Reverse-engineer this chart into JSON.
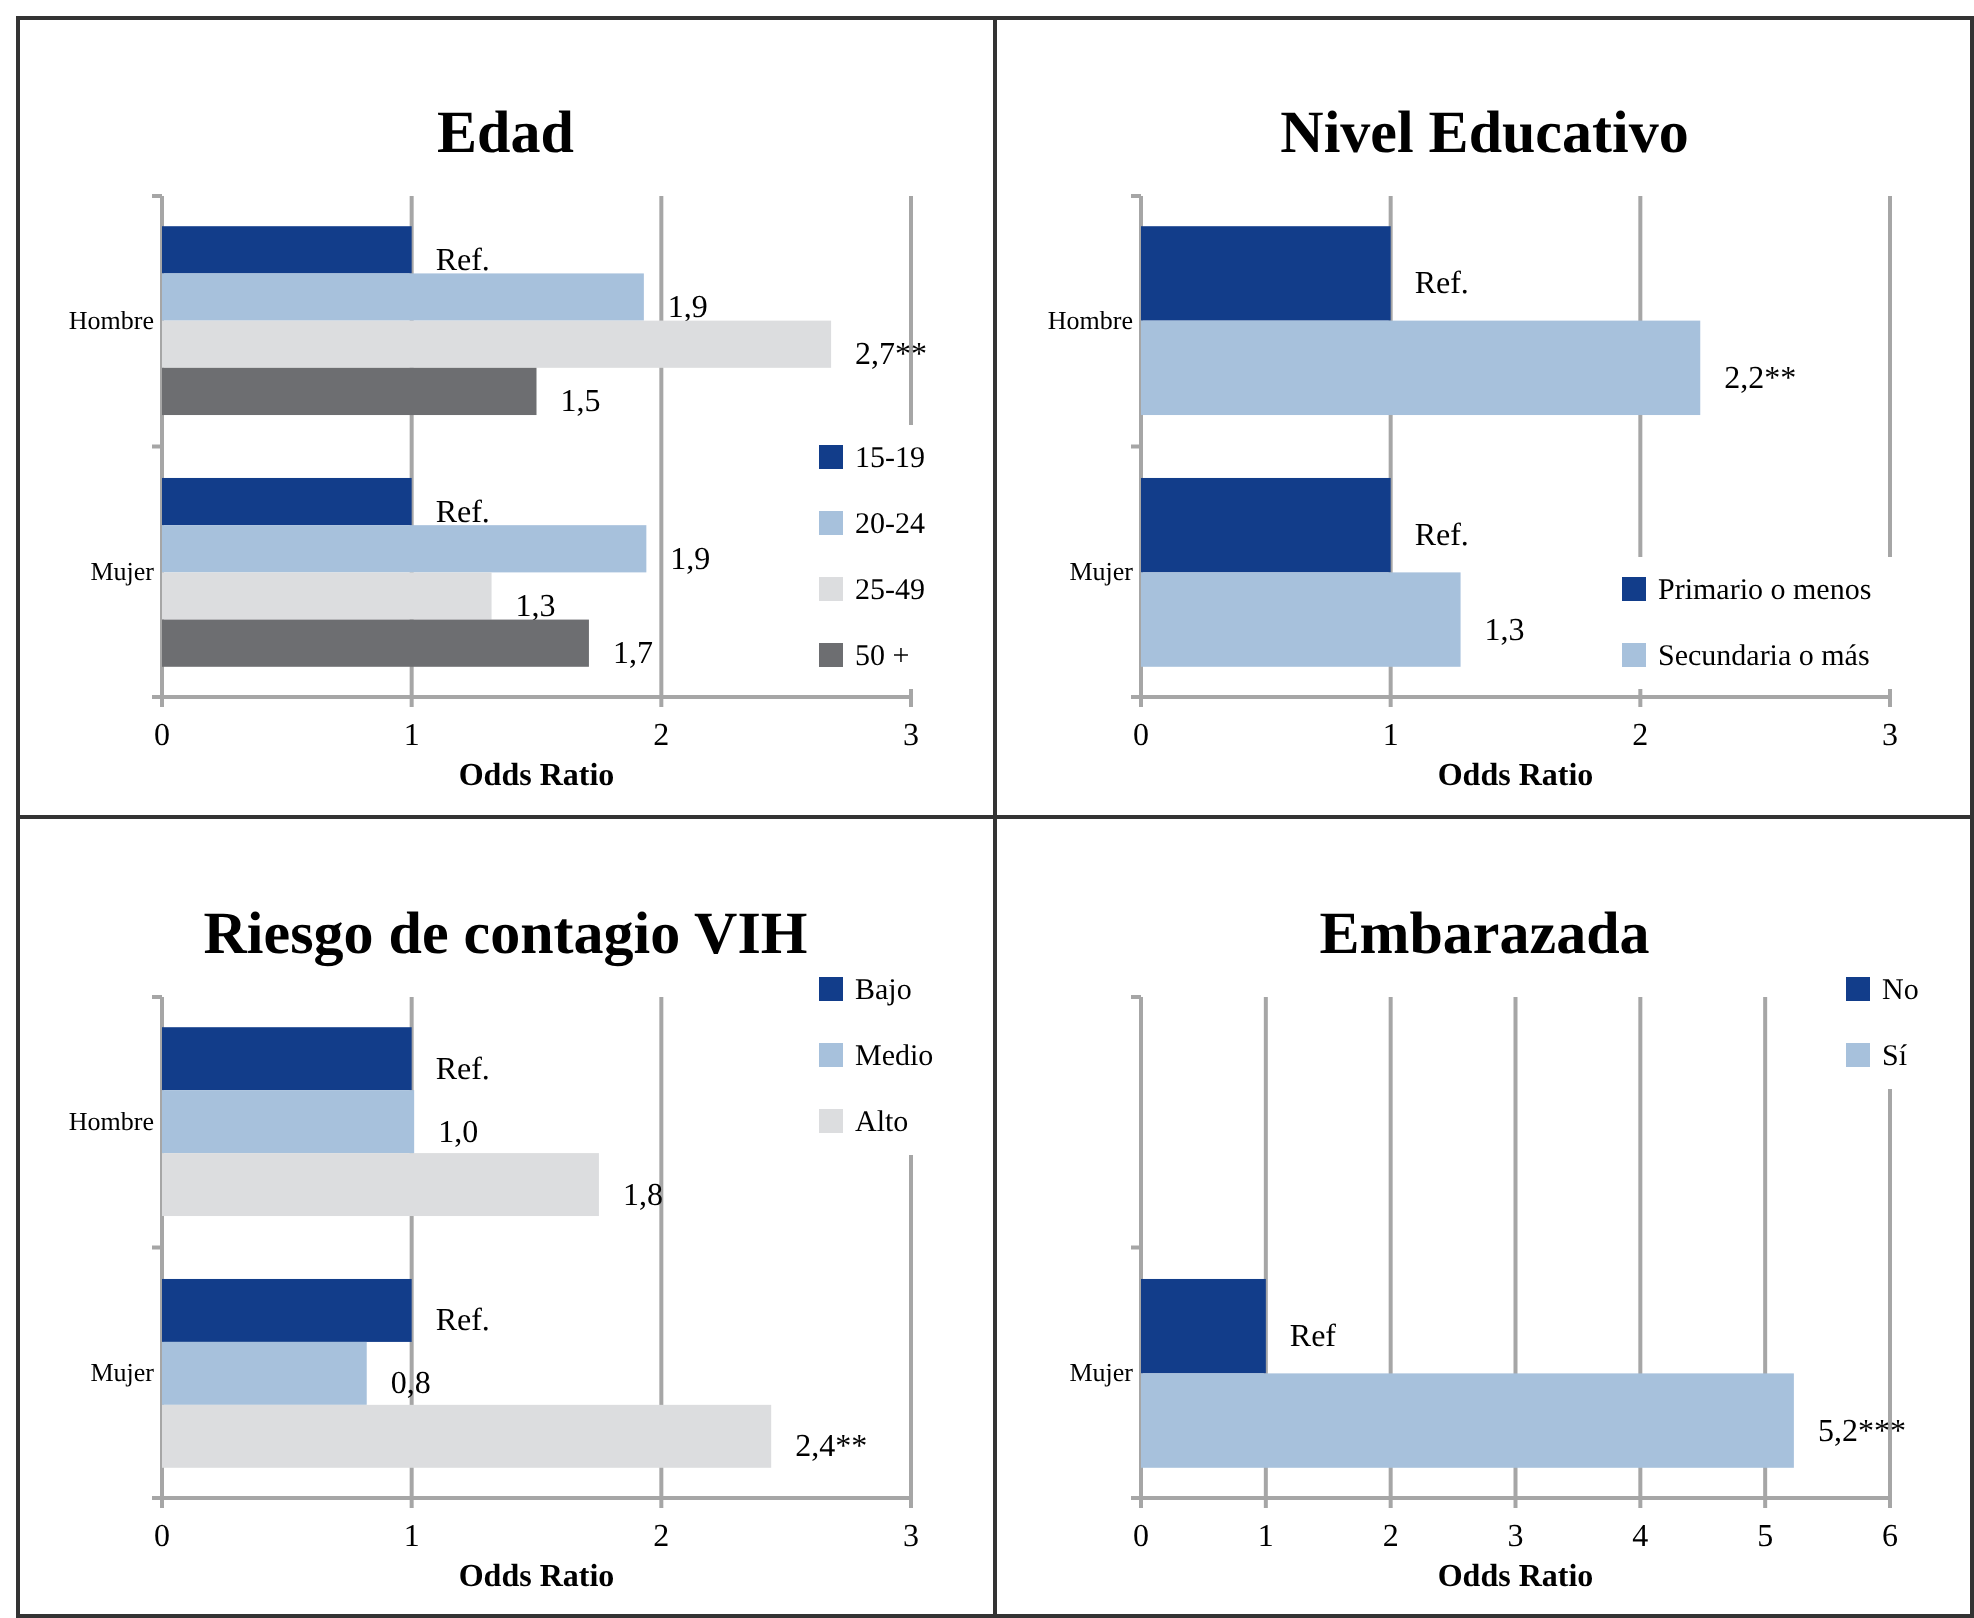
{
  "chart_data": [
    {
      "type": "bar",
      "orientation": "horizontal",
      "title": "Edad",
      "xlabel": "Odds Ratio",
      "categories": [
        "Hombre",
        "Mujer"
      ],
      "xlim": [
        0,
        3
      ],
      "xticks": [
        0,
        1,
        2,
        3
      ],
      "grid": "x",
      "legend": "bottom right",
      "series": [
        {
          "name": "15-19",
          "color": "#123d8a",
          "values": [
            1,
            1
          ],
          "value_labels": [
            "Ref.",
            "Ref."
          ]
        },
        {
          "name": "20-24",
          "color": "#a7c1dc",
          "values": [
            1.93,
            1.94
          ],
          "value_labels": [
            "1,9",
            "1,9"
          ]
        },
        {
          "name": "25-49",
          "color": "#dcdddf",
          "values": [
            2.68,
            1.32
          ],
          "value_labels": [
            "2,7**",
            "1,3"
          ]
        },
        {
          "name": "50 +",
          "color": "#6d6e71",
          "values": [
            1.5,
            1.71
          ],
          "value_labels": [
            "1,5",
            "1,7"
          ]
        }
      ]
    },
    {
      "type": "bar",
      "orientation": "horizontal",
      "title": "Nivel Educativo",
      "xlabel": "Odds Ratio",
      "categories": [
        "Hombre",
        "Mujer"
      ],
      "xlim": [
        0,
        3
      ],
      "xticks": [
        0,
        1,
        2,
        3
      ],
      "grid": "x",
      "legend": "bottom right",
      "series": [
        {
          "name": "Primario o menos",
          "color": "#123d8a",
          "values": [
            1,
            1
          ],
          "value_labels": [
            "Ref.",
            "Ref."
          ]
        },
        {
          "name": "Secundaria o más",
          "color": "#a7c1dc",
          "values": [
            2.24,
            1.28
          ],
          "value_labels": [
            "2,2**",
            "1,3"
          ]
        }
      ]
    },
    {
      "type": "bar",
      "orientation": "horizontal",
      "title": "Riesgo de contagio VIH",
      "xlabel": "Odds Ratio",
      "categories": [
        "Hombre",
        "Mujer"
      ],
      "xlim": [
        0,
        3
      ],
      "xticks": [
        0,
        1,
        2,
        3
      ],
      "grid": "x",
      "legend": "top right",
      "series": [
        {
          "name": "Bajo",
          "color": "#123d8a",
          "values": [
            1,
            1
          ],
          "value_labels": [
            "Ref.",
            "Ref."
          ]
        },
        {
          "name": "Medio",
          "color": "#a7c1dc",
          "values": [
            1.01,
            0.82
          ],
          "value_labels": [
            "1,0",
            "0,8"
          ]
        },
        {
          "name": "Alto",
          "color": "#dcdddf",
          "values": [
            1.75,
            2.44
          ],
          "value_labels": [
            "1,8",
            "2,4**"
          ]
        }
      ]
    },
    {
      "type": "bar",
      "orientation": "horizontal",
      "title": "Embarazada",
      "xlabel": "Odds Ratio",
      "categories": [
        null,
        "Mujer"
      ],
      "xlim": [
        0,
        6
      ],
      "xticks": [
        0,
        1,
        2,
        3,
        4,
        5,
        6
      ],
      "grid": "x",
      "legend": "top right",
      "series": [
        {
          "name": "No",
          "color": "#123d8a",
          "values": [
            null,
            1
          ],
          "value_labels": [
            null,
            "Ref"
          ]
        },
        {
          "name": "Sí",
          "color": "#a7c1dc",
          "values": [
            null,
            5.23
          ],
          "value_labels": [
            null,
            "5,2***"
          ]
        }
      ]
    }
  ]
}
